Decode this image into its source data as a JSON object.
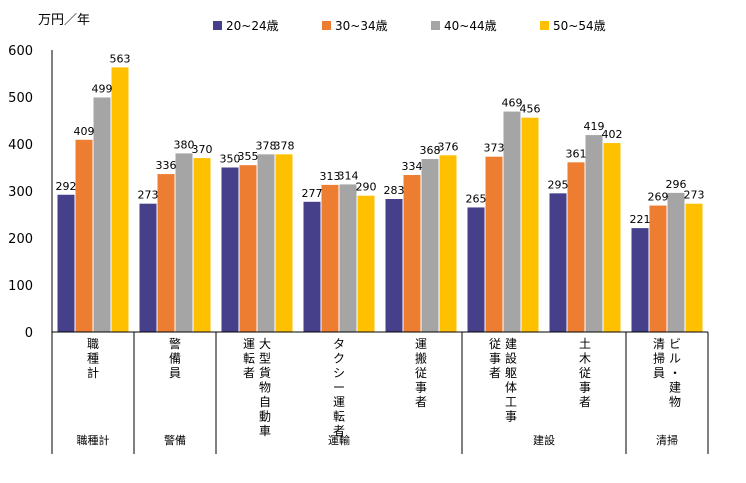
{
  "chart_data": {
    "type": "bar",
    "ylabel": "万円／年",
    "ylim": [
      0,
      600
    ],
    "yticks": [
      0,
      100,
      200,
      300,
      400,
      500,
      600
    ],
    "grid": false,
    "legend_position": "top",
    "colors": [
      "#463F8A",
      "#ED7D31",
      "#A5A5A5",
      "#FFC000"
    ],
    "categories": [
      {
        "lines": [
          "職種計"
        ]
      },
      {
        "lines": [
          "警備員"
        ]
      },
      {
        "lines": [
          "大型貨物自動車",
          "運転者"
        ]
      },
      {
        "lines": [
          "タクシー運転者"
        ]
      },
      {
        "lines": [
          "運搬従事者"
        ]
      },
      {
        "lines": [
          "建設躯体工事",
          "従事者"
        ]
      },
      {
        "lines": [
          "土木従事者"
        ]
      },
      {
        "lines": [
          "ビル・建物",
          "清掃員"
        ]
      }
    ],
    "groups": [
      {
        "label": "職種計",
        "span": 1
      },
      {
        "label": "警備",
        "span": 1
      },
      {
        "label": "運輸",
        "span": 3
      },
      {
        "label": "建設",
        "span": 2
      },
      {
        "label": "清掃",
        "span": 1
      }
    ],
    "series": [
      {
        "name": "20~24歳",
        "values": [
          292,
          273,
          350,
          277,
          283,
          265,
          295,
          221
        ]
      },
      {
        "name": "30~34歳",
        "values": [
          409,
          336,
          355,
          313,
          334,
          373,
          361,
          269
        ]
      },
      {
        "name": "40~44歳",
        "values": [
          499,
          380,
          378,
          314,
          368,
          469,
          419,
          296
        ]
      },
      {
        "name": "50~54歳",
        "values": [
          563,
          370,
          378,
          290,
          376,
          456,
          402,
          273
        ]
      }
    ]
  }
}
